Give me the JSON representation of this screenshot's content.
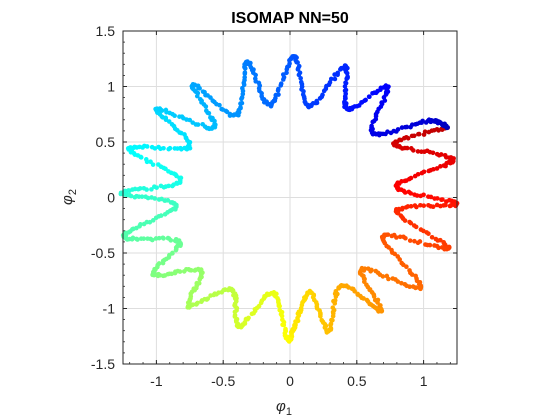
{
  "chart_data": {
    "type": "scatter",
    "title": "ISOMAP NN=50",
    "xlabel": {
      "base": "φ",
      "sub": "1"
    },
    "ylabel": {
      "base": "φ",
      "sub": "2"
    },
    "xlim": [
      -1.25,
      1.25
    ],
    "ylim": [
      -1.5,
      1.5
    ],
    "xticks": [
      -1,
      -0.5,
      0,
      0.5,
      1
    ],
    "xtick_labels": [
      "-1",
      "-0.5",
      "0",
      "0.5",
      "1"
    ],
    "yticks": [
      -1.5,
      -1,
      -0.5,
      0,
      0.5,
      1,
      1.5
    ],
    "ytick_labels": [
      "-1.5",
      "-1",
      "-0.5",
      "0",
      "0.5",
      "1",
      "1.5"
    ],
    "grid": true,
    "colormap": "jet",
    "marker_color_range": [
      "#00008f",
      "#0000ff",
      "#00ffff",
      "#ffff00",
      "#ff0000",
      "#800000"
    ],
    "series": [
      {
        "points": [
          [
            1.18,
            0.63
          ],
          [
            0.78,
            0.48
          ],
          [
            1.22,
            0.34
          ],
          [
            0.8,
            0.1
          ],
          [
            1.25,
            -0.06
          ],
          [
            0.8,
            -0.12
          ],
          [
            1.19,
            -0.46
          ],
          [
            0.7,
            -0.35
          ],
          [
            0.98,
            -0.81
          ],
          [
            0.54,
            -0.65
          ],
          [
            0.68,
            -1.02
          ],
          [
            0.38,
            -0.79
          ],
          [
            0.29,
            -1.21
          ],
          [
            0.15,
            -0.85
          ],
          [
            0.03,
            -1.18
          ],
          [
            -0.02,
            -1.27
          ],
          [
            -0.13,
            -0.86
          ],
          [
            -0.38,
            -1.16
          ],
          [
            -0.44,
            -0.83
          ],
          [
            -0.76,
            -0.98
          ],
          [
            -0.67,
            -0.66
          ],
          [
            -1.02,
            -0.69
          ],
          [
            -0.83,
            -0.4
          ],
          [
            -1.24,
            -0.35
          ],
          [
            -0.85,
            -0.07
          ],
          [
            -1.26,
            0.04
          ],
          [
            -0.82,
            0.15
          ],
          [
            -1.21,
            0.44
          ],
          [
            -0.75,
            0.46
          ],
          [
            -1.0,
            0.8
          ],
          [
            -0.57,
            0.63
          ],
          [
            -0.73,
            1.02
          ],
          [
            -0.4,
            0.74
          ],
          [
            -0.32,
            1.22
          ],
          [
            -0.15,
            0.83
          ],
          [
            0.03,
            1.27
          ],
          [
            0.14,
            0.82
          ],
          [
            0.41,
            1.18
          ],
          [
            0.43,
            0.8
          ],
          [
            0.73,
            1.0
          ],
          [
            0.62,
            0.58
          ],
          [
            1.04,
            0.69
          ],
          [
            1.18,
            0.63
          ]
        ]
      }
    ]
  }
}
